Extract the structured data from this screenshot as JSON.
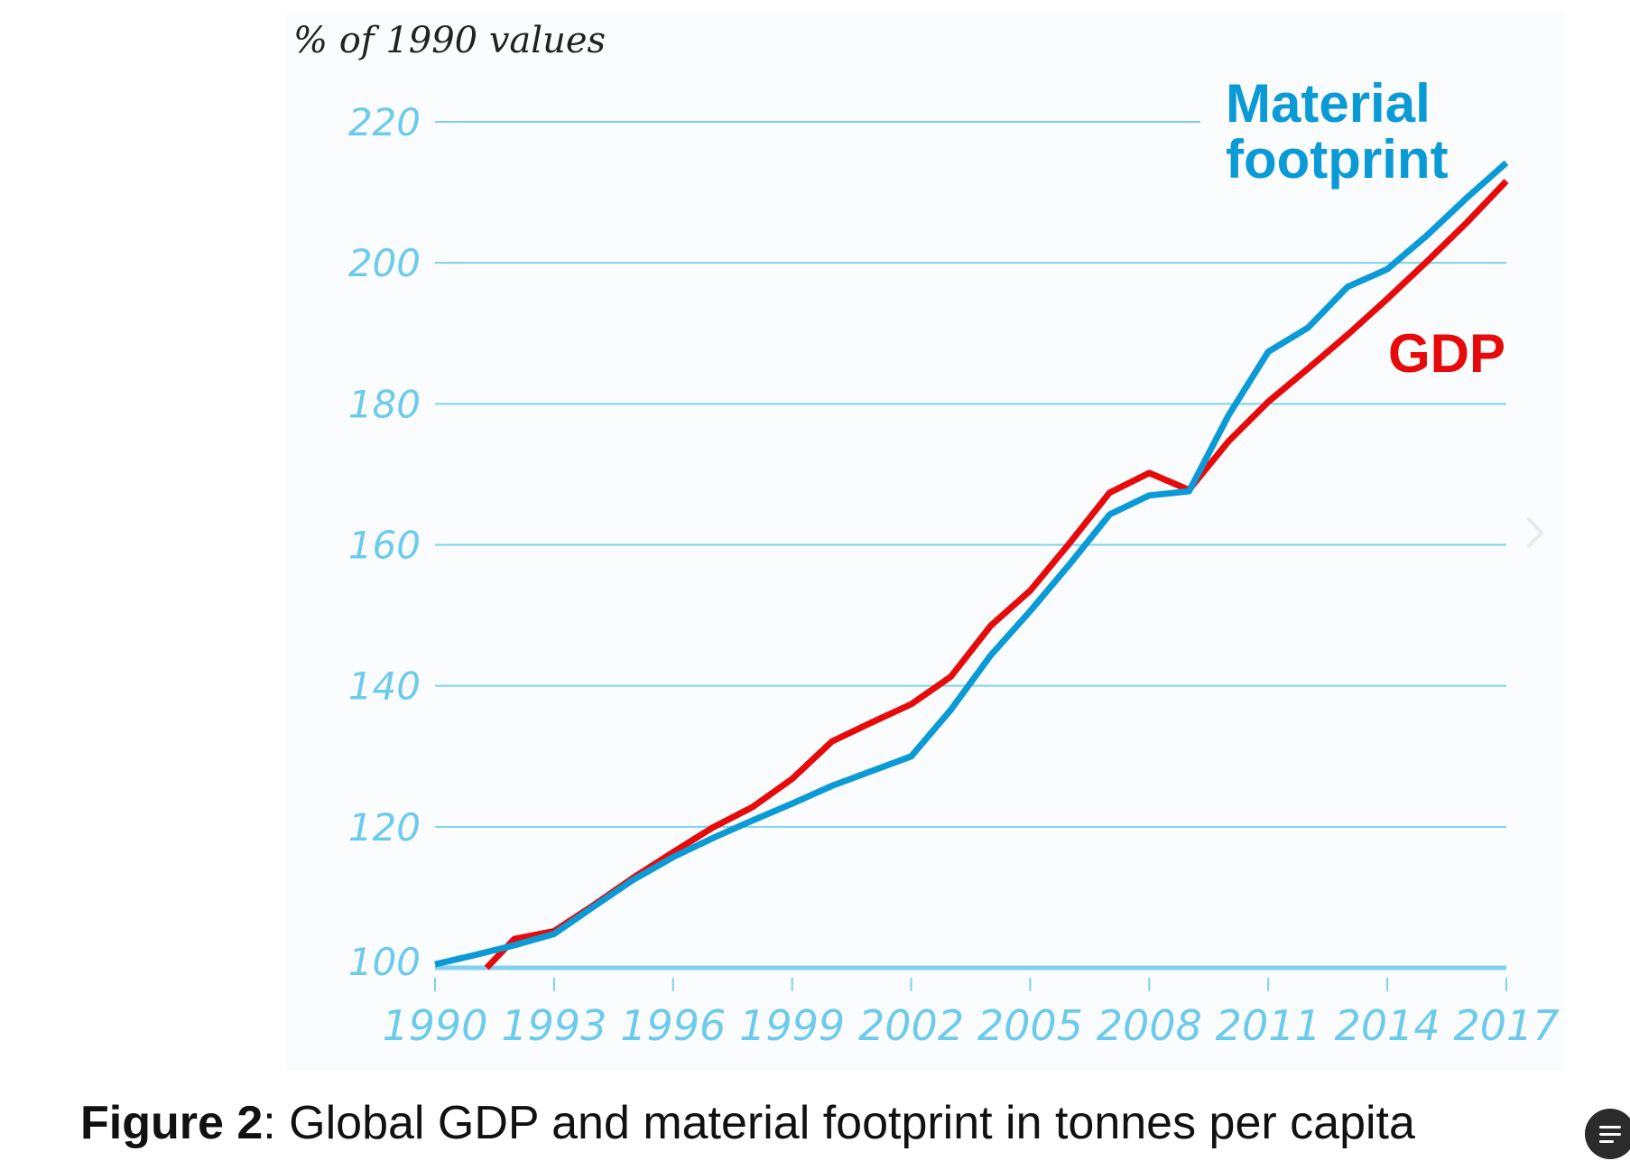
{
  "chart_data": {
    "type": "line",
    "ylabel": "% of 1990 values",
    "xlabel": "",
    "ylim": [
      100,
      220
    ],
    "xlim": [
      1990,
      2017
    ],
    "yticks": [
      "100",
      "120",
      "140",
      "160",
      "180",
      "200",
      "220"
    ],
    "xticks": [
      "1990",
      "1993",
      "1996",
      "1999",
      "2002",
      "2005",
      "2008",
      "2011",
      "2014",
      "2017"
    ],
    "grid": true,
    "legend": "inline-labels",
    "series": [
      {
        "name": "Material footprint",
        "label_lines": [
          "Material",
          "footprint"
        ],
        "color": "#0a9ad6",
        "x": [
          1990,
          1991,
          1992,
          1993,
          1994,
          1995,
          1996,
          1997,
          1998,
          1999,
          2000,
          2001,
          2002,
          2003,
          2004,
          2005,
          2006,
          2007,
          2008,
          2009,
          2010,
          2011,
          2012,
          2013,
          2014,
          2015,
          2016,
          2017
        ],
        "values": [
          100.5,
          101.8,
          103.2,
          104.8,
          108.7,
          112.5,
          115.7,
          118.4,
          120.9,
          123.3,
          125.8,
          127.9,
          130.0,
          136.6,
          144.3,
          150.6,
          157.3,
          164.3,
          167.0,
          167.6,
          178.4,
          187.4,
          190.8,
          196.6,
          199.1,
          203.9,
          209.2,
          214.2
        ]
      },
      {
        "name": "GDP",
        "label_lines": [
          "GDP"
        ],
        "color": "#e60a0a",
        "x": [
          1991.3,
          1992,
          1993,
          1994,
          1995,
          1996,
          1997,
          1998,
          1999,
          2000,
          2001,
          2002,
          2003,
          2004,
          2005,
          2006,
          2007,
          2008,
          2009,
          2010,
          2011,
          2012,
          2013,
          2014,
          2015,
          2016,
          2017
        ],
        "values": [
          100.0,
          104.1,
          105.2,
          108.9,
          112.8,
          116.4,
          119.9,
          122.8,
          126.8,
          132.1,
          134.8,
          137.4,
          141.3,
          148.5,
          153.5,
          160.3,
          167.4,
          170.2,
          167.8,
          174.7,
          180.3,
          185.0,
          189.8,
          194.9,
          200.2,
          205.7,
          211.6
        ]
      }
    ],
    "colors": {
      "grid": "#7fd2ef",
      "tick_text": "#6ccbec",
      "panel": "#fbfcfd"
    }
  },
  "caption": {
    "bold": "Figure 2",
    "text": ": Global GDP and material footprint in tonnes per capita"
  }
}
